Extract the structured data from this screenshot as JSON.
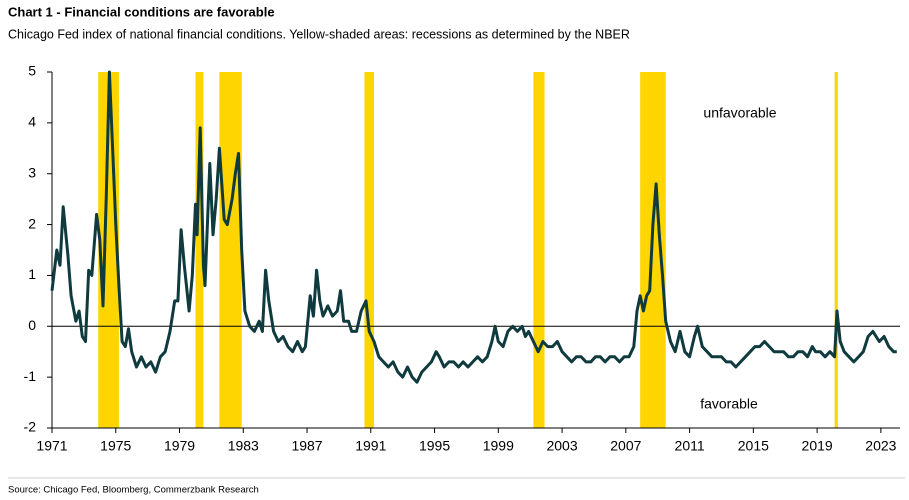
{
  "chart_data": {
    "type": "line",
    "title": "Chart 1 - Financial conditions are favorable",
    "subtitle": "Chicago Fed index of national financial conditions. Yellow-shaded areas: recessions as determined by the NBER",
    "source": "Source: Chicago Fed, Bloomberg, Commerzbank Research",
    "annotations": [
      "unfavorable",
      "favorable"
    ],
    "color": "#0f3a3e",
    "recession_color": "#ffd500",
    "recessions": [
      [
        1973.9,
        1975.2
      ],
      [
        1980.0,
        1980.5
      ],
      [
        1981.5,
        1982.9
      ],
      [
        1990.6,
        1991.2
      ],
      [
        2001.2,
        2001.9
      ],
      [
        2007.9,
        2009.5
      ],
      [
        2020.1,
        2020.3
      ]
    ],
    "x": [
      1971.0,
      1971.3,
      1971.5,
      1971.7,
      1972.0,
      1972.2,
      1972.5,
      1972.7,
      1972.9,
      1973.1,
      1973.3,
      1973.5,
      1973.8,
      1974.0,
      1974.2,
      1974.4,
      1974.6,
      1974.8,
      1975.0,
      1975.2,
      1975.4,
      1975.6,
      1975.8,
      1976.0,
      1976.3,
      1976.6,
      1976.9,
      1977.2,
      1977.5,
      1977.8,
      1978.1,
      1978.4,
      1978.7,
      1978.9,
      1979.1,
      1979.3,
      1979.6,
      1979.8,
      1980.0,
      1980.1,
      1980.3,
      1980.5,
      1980.6,
      1980.9,
      1981.1,
      1981.3,
      1981.5,
      1981.8,
      1982.0,
      1982.3,
      1982.5,
      1982.7,
      1982.9,
      1983.1,
      1983.4,
      1983.7,
      1984.0,
      1984.2,
      1984.4,
      1984.6,
      1984.9,
      1985.2,
      1985.5,
      1985.8,
      1986.1,
      1986.4,
      1986.7,
      1986.9,
      1987.2,
      1987.4,
      1987.6,
      1987.8,
      1988.0,
      1988.3,
      1988.6,
      1988.9,
      1989.1,
      1989.3,
      1989.6,
      1989.8,
      1990.1,
      1990.4,
      1990.7,
      1990.9,
      1991.2,
      1991.5,
      1991.8,
      1992.1,
      1992.4,
      1992.7,
      1993.0,
      1993.3,
      1993.6,
      1993.9,
      1994.2,
      1994.5,
      1994.8,
      1995.1,
      1995.3,
      1995.6,
      1995.9,
      1996.2,
      1996.5,
      1996.8,
      1997.1,
      1997.4,
      1997.7,
      1998.0,
      1998.3,
      1998.6,
      1998.8,
      1999.0,
      1999.3,
      1999.6,
      1999.9,
      2000.2,
      2000.5,
      2000.7,
      2000.9,
      2001.2,
      2001.5,
      2001.8,
      2002.1,
      2002.4,
      2002.7,
      2003.0,
      2003.3,
      2003.6,
      2003.9,
      2004.2,
      2004.5,
      2004.8,
      2005.1,
      2005.4,
      2005.7,
      2006.0,
      2006.3,
      2006.6,
      2006.9,
      2007.2,
      2007.5,
      2007.7,
      2007.9,
      2008.1,
      2008.3,
      2008.5,
      2008.7,
      2008.9,
      2009.1,
      2009.3,
      2009.5,
      2009.8,
      2010.1,
      2010.4,
      2010.7,
      2011.0,
      2011.3,
      2011.5,
      2011.8,
      2012.1,
      2012.4,
      2012.7,
      2013.0,
      2013.3,
      2013.6,
      2013.9,
      2014.2,
      2014.5,
      2014.8,
      2015.1,
      2015.4,
      2015.7,
      2016.0,
      2016.3,
      2016.6,
      2016.9,
      2017.2,
      2017.5,
      2017.8,
      2018.1,
      2018.4,
      2018.7,
      2018.9,
      2019.2,
      2019.5,
      2019.8,
      2020.1,
      2020.25,
      2020.45,
      2020.7,
      2021.0,
      2021.3,
      2021.6,
      2021.9,
      2022.2,
      2022.5,
      2022.7,
      2022.9,
      2023.2,
      2023.5,
      2023.8,
      2024.0
    ],
    "values": [
      0.7,
      1.5,
      1.2,
      2.35,
      1.4,
      0.6,
      0.1,
      0.3,
      -0.2,
      -0.3,
      1.1,
      1.0,
      2.2,
      1.7,
      0.4,
      2.5,
      5.0,
      3.5,
      2.0,
      0.8,
      -0.3,
      -0.4,
      -0.05,
      -0.5,
      -0.8,
      -0.6,
      -0.8,
      -0.7,
      -0.9,
      -0.6,
      -0.5,
      -0.1,
      0.5,
      0.5,
      1.9,
      1.2,
      0.3,
      1.0,
      2.4,
      1.8,
      3.9,
      1.2,
      0.8,
      3.2,
      1.8,
      2.5,
      3.5,
      2.1,
      2.0,
      2.5,
      3.0,
      3.4,
      1.5,
      0.3,
      0.0,
      -0.1,
      0.1,
      -0.1,
      1.1,
      0.5,
      -0.1,
      -0.3,
      -0.2,
      -0.4,
      -0.5,
      -0.3,
      -0.5,
      -0.4,
      0.6,
      0.2,
      1.1,
      0.5,
      0.2,
      0.4,
      0.2,
      0.3,
      0.7,
      0.1,
      0.1,
      -0.1,
      -0.1,
      0.3,
      0.5,
      -0.1,
      -0.3,
      -0.6,
      -0.7,
      -0.8,
      -0.7,
      -0.9,
      -1.0,
      -0.8,
      -1.0,
      -1.1,
      -0.9,
      -0.8,
      -0.7,
      -0.5,
      -0.6,
      -0.8,
      -0.7,
      -0.7,
      -0.8,
      -0.7,
      -0.8,
      -0.7,
      -0.6,
      -0.7,
      -0.6,
      -0.3,
      0.0,
      -0.3,
      -0.4,
      -0.1,
      0.0,
      -0.1,
      0.0,
      -0.2,
      -0.1,
      -0.3,
      -0.5,
      -0.3,
      -0.4,
      -0.4,
      -0.3,
      -0.5,
      -0.6,
      -0.7,
      -0.6,
      -0.6,
      -0.7,
      -0.7,
      -0.6,
      -0.6,
      -0.7,
      -0.6,
      -0.6,
      -0.7,
      -0.6,
      -0.6,
      -0.4,
      0.3,
      0.6,
      0.3,
      0.6,
      0.7,
      2.0,
      2.8,
      1.8,
      1.0,
      0.1,
      -0.3,
      -0.5,
      -0.1,
      -0.5,
      -0.6,
      -0.2,
      0.0,
      -0.4,
      -0.5,
      -0.6,
      -0.6,
      -0.6,
      -0.7,
      -0.7,
      -0.8,
      -0.7,
      -0.6,
      -0.5,
      -0.4,
      -0.4,
      -0.3,
      -0.4,
      -0.5,
      -0.5,
      -0.5,
      -0.6,
      -0.6,
      -0.5,
      -0.5,
      -0.6,
      -0.4,
      -0.5,
      -0.5,
      -0.6,
      -0.5,
      -0.6,
      0.3,
      -0.3,
      -0.5,
      -0.6,
      -0.7,
      -0.6,
      -0.5,
      -0.2,
      -0.1,
      -0.2,
      -0.3,
      -0.2,
      -0.4,
      -0.5,
      -0.5
    ],
    "xlim": [
      1971,
      2024.2
    ],
    "xticks": [
      1971,
      1975,
      1979,
      1983,
      1987,
      1991,
      1995,
      1999,
      2003,
      2007,
      2011,
      2015,
      2019,
      2023
    ],
    "ylim": [
      -2,
      5
    ],
    "yticks": [
      -2,
      -1,
      0,
      1,
      2,
      3,
      4,
      5
    ],
    "grid": false
  }
}
